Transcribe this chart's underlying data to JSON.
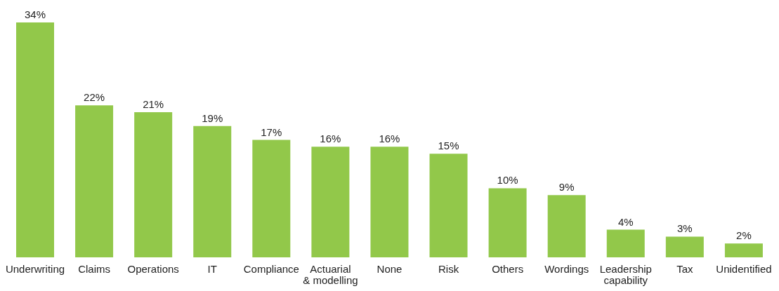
{
  "chart_data": {
    "type": "bar",
    "categories": [
      "Underwriting",
      "Claims",
      "Operations",
      "IT",
      "Compliance",
      "Actuarial\n& modelling",
      "None",
      "Risk",
      "Others",
      "Wordings",
      "Leadership\ncapability",
      "Tax",
      "Unidentified"
    ],
    "values": [
      34,
      22,
      21,
      19,
      17,
      16,
      16,
      15,
      10,
      9,
      4,
      3,
      2
    ],
    "value_labels": [
      "34%",
      "22%",
      "21%",
      "19%",
      "17%",
      "16%",
      "16%",
      "15%",
      "10%",
      "9%",
      "4%",
      "3%",
      "2%"
    ],
    "color": "#92c84a",
    "grid": false,
    "legend": false,
    "tick_labels": "x"
  }
}
